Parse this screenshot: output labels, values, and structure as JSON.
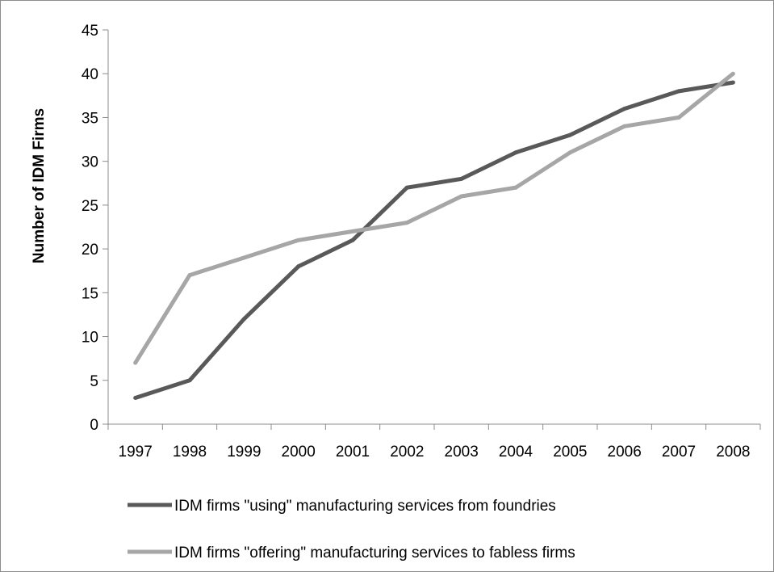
{
  "chart_data": {
    "type": "line",
    "title": "",
    "xlabel": "",
    "ylabel": "Number of IDM Firms",
    "ylim": [
      0,
      45
    ],
    "yticks": [
      0,
      5,
      10,
      15,
      20,
      25,
      30,
      35,
      40,
      45
    ],
    "grid": false,
    "legend_position": "bottom",
    "categories": [
      "1997",
      "1998",
      "1999",
      "2000",
      "2001",
      "2002",
      "2003",
      "2004",
      "2005",
      "2006",
      "2007",
      "2008"
    ],
    "series": [
      {
        "name": "IDM firms \"using\" manufacturing services from foundries",
        "color": "#595959",
        "values": [
          3,
          5,
          12,
          18,
          21,
          27,
          28,
          31,
          33,
          36,
          38,
          39
        ]
      },
      {
        "name": "IDM firms \"offering\" manufacturing services to fabless firms",
        "color": "#a6a6a6",
        "values": [
          7,
          17,
          19,
          21,
          22,
          23,
          26,
          27,
          31,
          34,
          35,
          40
        ]
      }
    ]
  }
}
